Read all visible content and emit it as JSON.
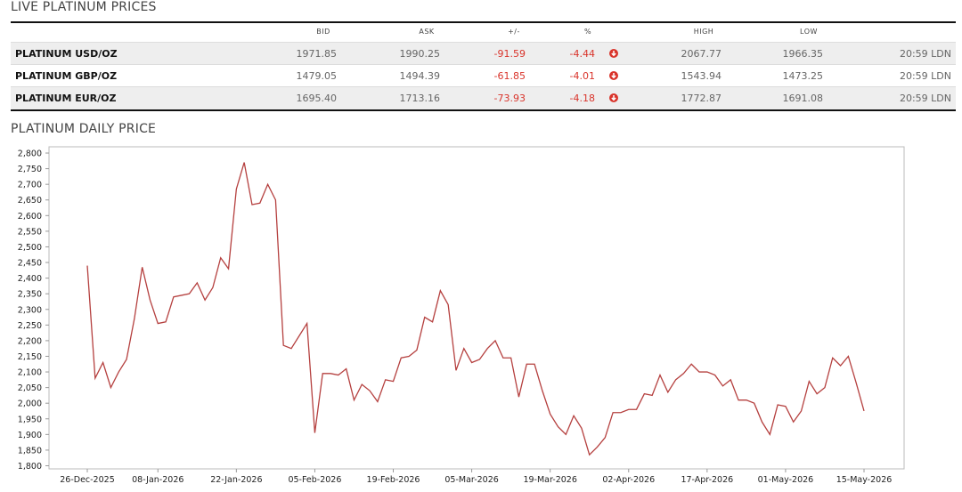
{
  "header": {
    "title": "LIVE PLATINUM PRICES"
  },
  "table": {
    "columns": [
      "BID",
      "ASK",
      "+/-",
      "%",
      "HIGH",
      "LOW"
    ],
    "rows": [
      [
        "PLATINUM USD/OZ",
        "1971.85",
        "1990.25",
        "-91.59",
        "-4.44",
        "2067.77",
        "1966.35",
        "20:59 LDN"
      ],
      [
        "PLATINUM GBP/OZ",
        "1479.05",
        "1494.39",
        "-61.85",
        "-4.01",
        "1543.94",
        "1473.25",
        "20:59 LDN"
      ],
      [
        "PLATINUM EUR/OZ",
        "1695.40",
        "1713.16",
        "-73.93",
        "-4.18",
        "1772.87",
        "1691.08",
        "20:59 LDN"
      ]
    ]
  },
  "chart_data": {
    "type": "line",
    "title": "PLATINUM DAILY PRICE",
    "color": "#b5403f",
    "categories": [
      "26-Dec-2025",
      null,
      null,
      null,
      null,
      null,
      null,
      null,
      null,
      "08-Jan-2026",
      null,
      null,
      null,
      null,
      null,
      null,
      null,
      null,
      null,
      "22-Jan-2026",
      null,
      null,
      null,
      null,
      null,
      null,
      null,
      null,
      null,
      "05-Feb-2026",
      null,
      null,
      null,
      null,
      null,
      null,
      null,
      null,
      null,
      "19-Feb-2026",
      null,
      null,
      null,
      null,
      null,
      null,
      null,
      null,
      null,
      "05-Mar-2026",
      null,
      null,
      null,
      null,
      null,
      null,
      null,
      null,
      null,
      "19-Mar-2026",
      null,
      null,
      null,
      null,
      null,
      null,
      null,
      null,
      null,
      "02-Apr-2026",
      null,
      null,
      null,
      null,
      null,
      null,
      null,
      null,
      null,
      "17-Apr-2026",
      null,
      null,
      null,
      null,
      null,
      null,
      null,
      null,
      null,
      "01-May-2026",
      null,
      null,
      null,
      null,
      null,
      null,
      null,
      null,
      null,
      "15-May-2026"
    ],
    "values": [
      2440,
      2080,
      2130,
      2050,
      2100,
      2140,
      2270,
      2435,
      2330,
      2255,
      2260,
      2340,
      2345,
      2350,
      2385,
      2330,
      2370,
      2465,
      2430,
      2685,
      2770,
      2635,
      2640,
      2700,
      2650,
      2185,
      2175,
      2215,
      2255,
      1905,
      2095,
      2095,
      2090,
      2110,
      2010,
      2060,
      2040,
      2005,
      2075,
      2070,
      2145,
      2150,
      2170,
      2275,
      2260,
      2360,
      2315,
      2105,
      2175,
      2130,
      2140,
      2175,
      2200,
      2145,
      2145,
      2020,
      2125,
      2125,
      2040,
      1965,
      1925,
      1900,
      1960,
      1920,
      1835,
      1860,
      1890,
      1970,
      1970,
      1980,
      1980,
      2030,
      2025,
      2090,
      2035,
      2075,
      2095,
      2125,
      2100,
      2100,
      2090,
      2055,
      2075,
      2010,
      2010,
      2000,
      1940,
      1900,
      1995,
      1990,
      1940,
      1975,
      2070,
      2030,
      2050,
      2145,
      2120,
      2150,
      2065,
      1975
    ],
    "ylim": [
      1790,
      2820
    ],
    "yticks": [
      {
        "value": 1800,
        "label": "1,800"
      },
      {
        "value": 1850,
        "label": "1,850"
      },
      {
        "value": 1900,
        "label": "1,900"
      },
      {
        "value": 1950,
        "label": "1,950"
      },
      {
        "value": 2000,
        "label": "2,000"
      },
      {
        "value": 2050,
        "label": "2,050"
      },
      {
        "value": 2100,
        "label": "2,100"
      },
      {
        "value": 2150,
        "label": "2,150"
      },
      {
        "value": 2200,
        "label": "2,200"
      },
      {
        "value": 2250,
        "label": "2,250"
      },
      {
        "value": 2300,
        "label": "2,300"
      },
      {
        "value": 2350,
        "label": "2,350"
      },
      {
        "value": 2400,
        "label": "2,400"
      },
      {
        "value": 2450,
        "label": "2,450"
      },
      {
        "value": 2500,
        "label": "2,500"
      },
      {
        "value": 2550,
        "label": "2,550"
      },
      {
        "value": 2600,
        "label": "2,600"
      },
      {
        "value": 2650,
        "label": "2,650"
      },
      {
        "value": 2700,
        "label": "2,700"
      },
      {
        "value": 2750,
        "label": "2,750"
      },
      {
        "value": 2800,
        "label": "2,800"
      }
    ],
    "grid": false
  }
}
